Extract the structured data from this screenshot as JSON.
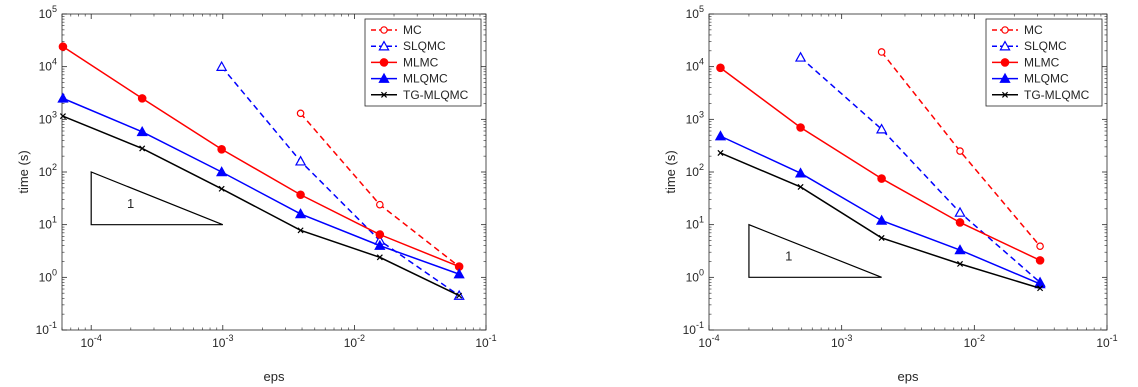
{
  "chart_data": [
    {
      "type": "line",
      "xscale": "log",
      "yscale": "log",
      "xlim": [
        6e-05,
        0.1
      ],
      "ylim": [
        0.1,
        100000
      ],
      "xlabel": "eps",
      "ylabel": "time (s)",
      "legend_position": "top-right",
      "grid": false,
      "x_ticks": [
        {
          "v": 0.0001,
          "m": "10",
          "e": "-4"
        },
        {
          "v": 0.001,
          "m": "10",
          "e": "-3"
        },
        {
          "v": 0.01,
          "m": "10",
          "e": "-2"
        },
        {
          "v": 0.1,
          "m": "10",
          "e": "-1"
        }
      ],
      "y_ticks": [
        {
          "v": 0.1,
          "m": "10",
          "e": "-1"
        },
        {
          "v": 1,
          "m": "10",
          "e": "0"
        },
        {
          "v": 10,
          "m": "10",
          "e": "1"
        },
        {
          "v": 100,
          "m": "10",
          "e": "2"
        },
        {
          "v": 1000,
          "m": "10",
          "e": "3"
        },
        {
          "v": 10000,
          "m": "10",
          "e": "4"
        },
        {
          "v": 100000,
          "m": "10",
          "e": "5"
        }
      ],
      "series": [
        {
          "name": "MC",
          "color": "#ff0000",
          "dash": true,
          "marker": "circle-open",
          "x": [
            0.0039,
            0.0156,
            0.0625
          ],
          "y": [
            1300,
            24,
            1.6
          ]
        },
        {
          "name": "SLQMC",
          "color": "#0000ff",
          "dash": true,
          "marker": "triangle-open",
          "x": [
            0.00098,
            0.0039,
            0.0156,
            0.0625
          ],
          "y": [
            10000,
            160,
            5,
            0.45
          ]
        },
        {
          "name": "MLMC",
          "color": "#ff0000",
          "dash": false,
          "marker": "circle-filled",
          "x": [
            6.1e-05,
            0.000244,
            0.00098,
            0.0039,
            0.0156,
            0.0625
          ],
          "y": [
            24000,
            2500,
            270,
            37,
            6.5,
            1.6
          ]
        },
        {
          "name": "MLQMC",
          "color": "#0000ff",
          "dash": false,
          "marker": "triangle-filled",
          "x": [
            6.1e-05,
            0.000244,
            0.00098,
            0.0039,
            0.0156,
            0.0625
          ],
          "y": [
            2500,
            580,
            100,
            16,
            4,
            1.15
          ]
        },
        {
          "name": "TG-MLQMC",
          "color": "#000000",
          "dash": false,
          "marker": "x",
          "x": [
            6.1e-05,
            0.000244,
            0.00098,
            0.0039,
            0.0156,
            0.0625
          ],
          "y": [
            1150,
            280,
            48,
            7.8,
            2.4,
            0.45
          ]
        }
      ],
      "slope_triangle": {
        "x": [
          0.0001,
          0.001
        ],
        "y": [
          10,
          100
        ],
        "label": "1"
      }
    },
    {
      "type": "line",
      "xscale": "log",
      "yscale": "log",
      "xlim": [
        0.0001,
        0.1
      ],
      "ylim": [
        0.1,
        100000
      ],
      "xlabel": "eps",
      "ylabel": "time (s)",
      "legend_position": "top-right",
      "grid": false,
      "x_ticks": [
        {
          "v": 0.0001,
          "m": "10",
          "e": "-4"
        },
        {
          "v": 0.001,
          "m": "10",
          "e": "-3"
        },
        {
          "v": 0.01,
          "m": "10",
          "e": "-2"
        },
        {
          "v": 0.1,
          "m": "10",
          "e": "-1"
        }
      ],
      "y_ticks": [
        {
          "v": 0.1,
          "m": "10",
          "e": "-1"
        },
        {
          "v": 1,
          "m": "10",
          "e": "0"
        },
        {
          "v": 10,
          "m": "10",
          "e": "1"
        },
        {
          "v": 100,
          "m": "10",
          "e": "2"
        },
        {
          "v": 1000,
          "m": "10",
          "e": "3"
        },
        {
          "v": 10000,
          "m": "10",
          "e": "4"
        },
        {
          "v": 100000,
          "m": "10",
          "e": "5"
        }
      ],
      "series": [
        {
          "name": "MC",
          "color": "#ff0000",
          "dash": true,
          "marker": "circle-open",
          "x": [
            0.002,
            0.0078,
            0.0313
          ],
          "y": [
            19000,
            250,
            3.9
          ]
        },
        {
          "name": "SLQMC",
          "color": "#0000ff",
          "dash": true,
          "marker": "triangle-open",
          "x": [
            0.00049,
            0.002,
            0.0078,
            0.0313
          ],
          "y": [
            15000,
            650,
            17,
            0.8
          ]
        },
        {
          "name": "MLMC",
          "color": "#ff0000",
          "dash": false,
          "marker": "circle-filled",
          "x": [
            0.000122,
            0.00049,
            0.002,
            0.0078,
            0.0313
          ],
          "y": [
            9500,
            700,
            75,
            11,
            2.1
          ]
        },
        {
          "name": "MLQMC",
          "color": "#0000ff",
          "dash": false,
          "marker": "triangle-filled",
          "x": [
            0.000122,
            0.00049,
            0.002,
            0.0078,
            0.0313
          ],
          "y": [
            480,
            95,
            12,
            3.3,
            0.75
          ]
        },
        {
          "name": "TG-MLQMC",
          "color": "#000000",
          "dash": false,
          "marker": "x",
          "x": [
            0.000122,
            0.00049,
            0.002,
            0.0078,
            0.0313
          ],
          "y": [
            230,
            52,
            5.6,
            1.8,
            0.62
          ]
        }
      ],
      "slope_triangle": {
        "x": [
          0.0002,
          0.002
        ],
        "y": [
          1,
          10
        ],
        "label": "1"
      }
    }
  ]
}
